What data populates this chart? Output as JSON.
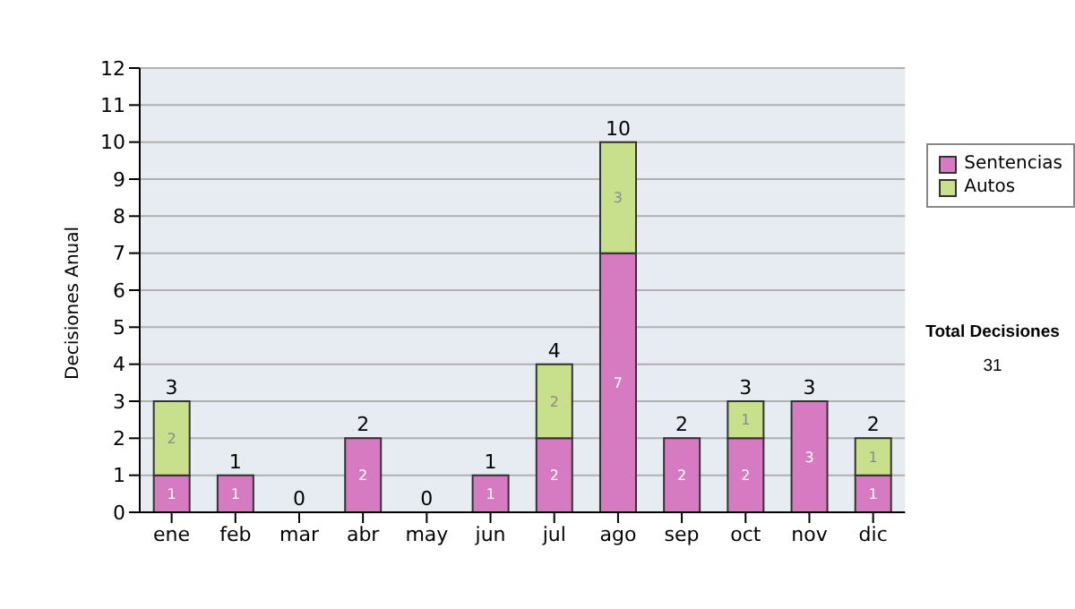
{
  "chart_data": {
    "type": "bar",
    "stacked": true,
    "ylabel": "Decisiones Anual",
    "categories": [
      "ene",
      "feb",
      "mar",
      "abr",
      "may",
      "jun",
      "jul",
      "ago",
      "sep",
      "oct",
      "nov",
      "dic"
    ],
    "series": [
      {
        "name": "Sentencias",
        "color": "#d67bc1",
        "values": [
          1,
          1,
          0,
          2,
          0,
          1,
          2,
          7,
          2,
          2,
          3,
          1
        ],
        "value_labels": [
          "1",
          "1",
          null,
          "2",
          null,
          "1",
          "2",
          "7",
          "2",
          "2",
          "3",
          "1"
        ]
      },
      {
        "name": "Autos",
        "color": "#c8df8c",
        "values": [
          2,
          0,
          0,
          0,
          0,
          0,
          2,
          3,
          0,
          1,
          0,
          1
        ],
        "value_labels": [
          "2",
          null,
          null,
          null,
          null,
          null,
          "2",
          "3",
          null,
          "1",
          null,
          "1"
        ]
      }
    ],
    "ylim": [
      0,
      12
    ],
    "yticks": [
      0,
      1,
      2,
      3,
      4,
      5,
      6,
      7,
      8,
      9,
      10,
      11,
      12
    ],
    "grid": "y",
    "legend": "right",
    "totals": [
      "3",
      "1",
      "0",
      "2",
      "0",
      "1",
      "4",
      "10",
      "2",
      "3",
      "3",
      "2"
    ],
    "annotations": [
      "Total Decisiones",
      "31"
    ]
  }
}
